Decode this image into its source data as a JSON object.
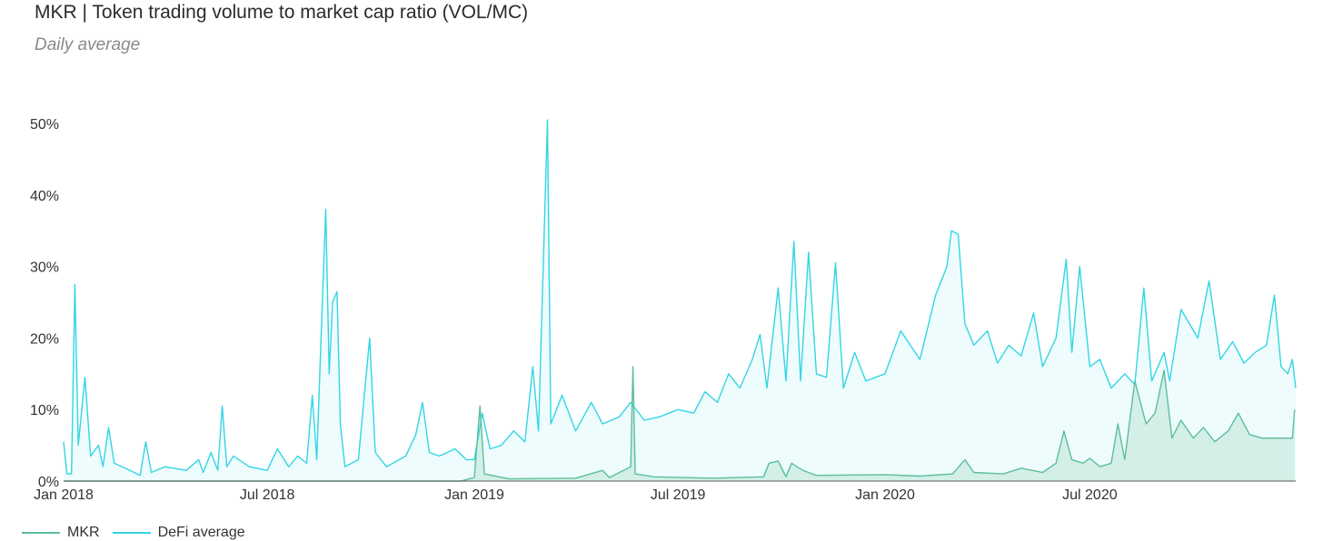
{
  "title": "MKR | Token trading volume to market cap ratio (VOL/MC)",
  "subtitle": "Daily average",
  "colors": {
    "defi": "#32d6e4",
    "defi_fill": "#eafbfc",
    "mkr": "#5dbf9a",
    "mkr_fill": "#c9ebdf",
    "axis": "#555555"
  },
  "chart_data": {
    "type": "area",
    "title": "MKR | Token trading volume to market cap ratio (VOL/MC)",
    "subtitle": "Daily average",
    "xlabel": "",
    "ylabel": "",
    "x_range": [
      "2018-01-01",
      "2020-12-31"
    ],
    "ylim": [
      0,
      50
    ],
    "y_ticks": [
      "0%",
      "10%",
      "20%",
      "30%",
      "40%",
      "50%"
    ],
    "x_ticks": [
      "Jan 2018",
      "Jul 2018",
      "Jan 2019",
      "Jul 2019",
      "Jan 2020",
      "Jul 2020"
    ],
    "x_tick_dates": [
      "2018-01-01",
      "2018-07-01",
      "2019-01-01",
      "2019-07-01",
      "2020-01-01",
      "2020-07-01"
    ],
    "grid": false,
    "legend_position": "bottom-left",
    "series": [
      {
        "name": "MKR",
        "color": "#5dbf9a",
        "points": [
          [
            "2018-01-01",
            0.0
          ],
          [
            "2018-12-20",
            0.0
          ],
          [
            "2019-01-01",
            0.5
          ],
          [
            "2019-01-06",
            10.5
          ],
          [
            "2019-01-10",
            1.0
          ],
          [
            "2019-02-01",
            0.3
          ],
          [
            "2019-04-01",
            0.4
          ],
          [
            "2019-04-25",
            1.5
          ],
          [
            "2019-05-01",
            0.5
          ],
          [
            "2019-05-20",
            2.0
          ],
          [
            "2019-05-22",
            16.0
          ],
          [
            "2019-05-24",
            1.0
          ],
          [
            "2019-06-10",
            0.6
          ],
          [
            "2019-08-01",
            0.4
          ],
          [
            "2019-09-15",
            0.6
          ],
          [
            "2019-09-20",
            2.5
          ],
          [
            "2019-09-28",
            2.8
          ],
          [
            "2019-10-05",
            0.6
          ],
          [
            "2019-10-10",
            2.5
          ],
          [
            "2019-10-20",
            1.5
          ],
          [
            "2019-11-01",
            0.8
          ],
          [
            "2020-01-01",
            0.9
          ],
          [
            "2020-02-01",
            0.7
          ],
          [
            "2020-03-01",
            1.0
          ],
          [
            "2020-03-12",
            3.0
          ],
          [
            "2020-03-20",
            1.2
          ],
          [
            "2020-04-15",
            1.0
          ],
          [
            "2020-05-01",
            1.8
          ],
          [
            "2020-05-20",
            1.2
          ],
          [
            "2020-06-01",
            2.5
          ],
          [
            "2020-06-08",
            7.0
          ],
          [
            "2020-06-15",
            3.0
          ],
          [
            "2020-06-25",
            2.5
          ],
          [
            "2020-07-01",
            3.2
          ],
          [
            "2020-07-10",
            2.0
          ],
          [
            "2020-07-20",
            2.5
          ],
          [
            "2020-07-26",
            8.0
          ],
          [
            "2020-08-01",
            3.0
          ],
          [
            "2020-08-10",
            14.0
          ],
          [
            "2020-08-20",
            8.0
          ],
          [
            "2020-08-28",
            9.5
          ],
          [
            "2020-09-05",
            15.5
          ],
          [
            "2020-09-12",
            6.0
          ],
          [
            "2020-09-20",
            8.5
          ],
          [
            "2020-10-01",
            6.0
          ],
          [
            "2020-10-10",
            7.5
          ],
          [
            "2020-10-20",
            5.5
          ],
          [
            "2020-11-01",
            7.0
          ],
          [
            "2020-11-10",
            9.5
          ],
          [
            "2020-11-20",
            6.5
          ],
          [
            "2020-12-01",
            6.0
          ],
          [
            "2020-12-28",
            6.0
          ],
          [
            "2020-12-30",
            10.0
          ]
        ]
      },
      {
        "name": "DeFi average",
        "color": "#32d6e4",
        "points": [
          [
            "2018-01-01",
            5.5
          ],
          [
            "2018-01-04",
            1.0
          ],
          [
            "2018-01-08",
            1.0
          ],
          [
            "2018-01-11",
            27.5
          ],
          [
            "2018-01-14",
            5.0
          ],
          [
            "2018-01-20",
            14.5
          ],
          [
            "2018-01-25",
            3.5
          ],
          [
            "2018-02-01",
            5.0
          ],
          [
            "2018-02-05",
            2.0
          ],
          [
            "2018-02-10",
            7.5
          ],
          [
            "2018-02-15",
            2.5
          ],
          [
            "2018-03-01",
            1.5
          ],
          [
            "2018-03-10",
            0.8
          ],
          [
            "2018-03-15",
            5.5
          ],
          [
            "2018-03-20",
            1.2
          ],
          [
            "2018-04-01",
            2.0
          ],
          [
            "2018-04-20",
            1.5
          ],
          [
            "2018-05-01",
            3.0
          ],
          [
            "2018-05-05",
            1.2
          ],
          [
            "2018-05-12",
            4.0
          ],
          [
            "2018-05-18",
            1.5
          ],
          [
            "2018-05-22",
            10.5
          ],
          [
            "2018-05-26",
            2.0
          ],
          [
            "2018-06-01",
            3.5
          ],
          [
            "2018-06-15",
            2.0
          ],
          [
            "2018-07-01",
            1.5
          ],
          [
            "2018-07-10",
            4.5
          ],
          [
            "2018-07-20",
            2.0
          ],
          [
            "2018-07-28",
            3.5
          ],
          [
            "2018-08-05",
            2.5
          ],
          [
            "2018-08-10",
            12.0
          ],
          [
            "2018-08-14",
            3.0
          ],
          [
            "2018-08-18",
            21.0
          ],
          [
            "2018-08-22",
            38.0
          ],
          [
            "2018-08-25",
            15.0
          ],
          [
            "2018-08-28",
            25.0
          ],
          [
            "2018-09-01",
            26.5
          ],
          [
            "2018-09-04",
            8.0
          ],
          [
            "2018-09-08",
            2.0
          ],
          [
            "2018-09-20",
            3.0
          ],
          [
            "2018-09-30",
            20.0
          ],
          [
            "2018-10-05",
            4.0
          ],
          [
            "2018-10-15",
            2.0
          ],
          [
            "2018-11-01",
            3.5
          ],
          [
            "2018-11-10",
            6.5
          ],
          [
            "2018-11-16",
            11.0
          ],
          [
            "2018-11-22",
            4.0
          ],
          [
            "2018-12-01",
            3.5
          ],
          [
            "2018-12-15",
            4.5
          ],
          [
            "2018-12-25",
            3.0
          ],
          [
            "2019-01-01",
            3.0
          ],
          [
            "2019-01-08",
            9.5
          ],
          [
            "2019-01-15",
            4.5
          ],
          [
            "2019-01-25",
            5.0
          ],
          [
            "2019-02-05",
            7.0
          ],
          [
            "2019-02-15",
            5.5
          ],
          [
            "2019-02-22",
            16.0
          ],
          [
            "2019-02-27",
            7.0
          ],
          [
            "2019-03-07",
            50.5
          ],
          [
            "2019-03-10",
            8.0
          ],
          [
            "2019-03-20",
            12.0
          ],
          [
            "2019-04-01",
            7.0
          ],
          [
            "2019-04-15",
            11.0
          ],
          [
            "2019-04-25",
            8.0
          ],
          [
            "2019-05-10",
            9.0
          ],
          [
            "2019-05-20",
            11.0
          ],
          [
            "2019-06-01",
            8.5
          ],
          [
            "2019-06-15",
            9.0
          ],
          [
            "2019-07-01",
            10.0
          ],
          [
            "2019-07-15",
            9.5
          ],
          [
            "2019-07-25",
            12.5
          ],
          [
            "2019-08-05",
            11.0
          ],
          [
            "2019-08-15",
            15.0
          ],
          [
            "2019-08-25",
            13.0
          ],
          [
            "2019-09-05",
            17.0
          ],
          [
            "2019-09-12",
            20.5
          ],
          [
            "2019-09-18",
            13.0
          ],
          [
            "2019-09-28",
            27.0
          ],
          [
            "2019-10-05",
            14.0
          ],
          [
            "2019-10-12",
            33.5
          ],
          [
            "2019-10-18",
            14.0
          ],
          [
            "2019-10-25",
            32.0
          ],
          [
            "2019-11-01",
            15.0
          ],
          [
            "2019-11-10",
            14.5
          ],
          [
            "2019-11-18",
            30.5
          ],
          [
            "2019-11-25",
            13.0
          ],
          [
            "2019-12-05",
            18.0
          ],
          [
            "2019-12-15",
            14.0
          ],
          [
            "2020-01-01",
            15.0
          ],
          [
            "2020-01-15",
            21.0
          ],
          [
            "2020-02-01",
            17.0
          ],
          [
            "2020-02-15",
            26.0
          ],
          [
            "2020-02-25",
            30.0
          ],
          [
            "2020-02-29",
            35.0
          ],
          [
            "2020-03-06",
            34.5
          ],
          [
            "2020-03-12",
            22.0
          ],
          [
            "2020-03-20",
            19.0
          ],
          [
            "2020-04-01",
            21.0
          ],
          [
            "2020-04-10",
            16.5
          ],
          [
            "2020-04-20",
            19.0
          ],
          [
            "2020-05-01",
            17.5
          ],
          [
            "2020-05-12",
            23.5
          ],
          [
            "2020-05-20",
            16.0
          ],
          [
            "2020-06-01",
            20.0
          ],
          [
            "2020-06-10",
            31.0
          ],
          [
            "2020-06-15",
            18.0
          ],
          [
            "2020-06-22",
            30.0
          ],
          [
            "2020-07-01",
            16.0
          ],
          [
            "2020-07-10",
            17.0
          ],
          [
            "2020-07-20",
            13.0
          ],
          [
            "2020-08-01",
            15.0
          ],
          [
            "2020-08-10",
            13.5
          ],
          [
            "2020-08-18",
            27.0
          ],
          [
            "2020-08-25",
            14.0
          ],
          [
            "2020-09-05",
            18.0
          ],
          [
            "2020-09-10",
            14.0
          ],
          [
            "2020-09-20",
            24.0
          ],
          [
            "2020-10-05",
            20.0
          ],
          [
            "2020-10-15",
            28.0
          ],
          [
            "2020-10-25",
            17.0
          ],
          [
            "2020-11-05",
            19.5
          ],
          [
            "2020-11-15",
            16.5
          ],
          [
            "2020-11-25",
            18.0
          ],
          [
            "2020-12-05",
            19.0
          ],
          [
            "2020-12-12",
            26.0
          ],
          [
            "2020-12-18",
            16.0
          ],
          [
            "2020-12-24",
            15.0
          ],
          [
            "2020-12-28",
            17.0
          ],
          [
            "2020-12-31",
            13.0
          ]
        ]
      }
    ]
  }
}
